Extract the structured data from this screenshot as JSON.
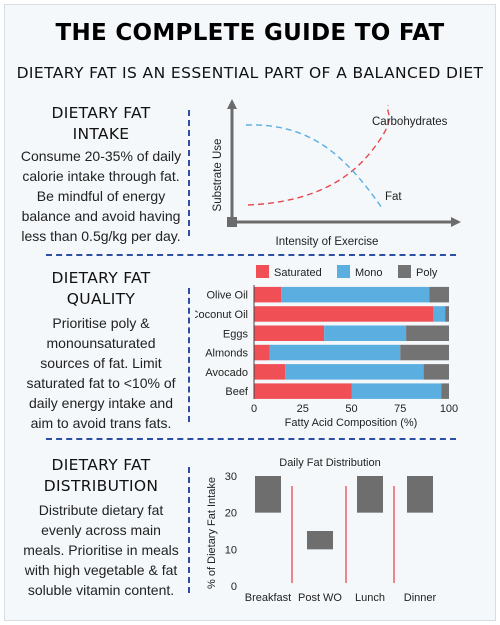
{
  "header": {
    "title": "THE COMPLETE GUIDE TO FAT",
    "subtitle": "DIETARY FAT IS AN ESSENTIAL PART OF A BALANCED DIET"
  },
  "sections": [
    {
      "heading_lines": [
        "DIETARY FAT",
        "INTAKE"
      ],
      "body_lines": [
        "Consume 20-35% of daily",
        "calorie intake through fat.",
        "Be mindful of energy",
        "balance and avoid having",
        "less than 0.5g/kg per day."
      ]
    },
    {
      "heading_lines": [
        "DIETARY FAT",
        "QUALITY"
      ],
      "body_lines": [
        "Prioritise poly &",
        "monounsaturated",
        "sources of fat. Limit",
        "saturated fat to <10% of",
        "daily energy intake and",
        "aim to avoid trans fats."
      ]
    },
    {
      "heading_lines": [
        "DIETARY FAT",
        "DISTRIBUTION"
      ],
      "body_lines": [
        "Distribute dietary fat",
        "evenly across main",
        "meals. Prioritise in meals",
        "with high vegetable & fat",
        "soluble vitamin content."
      ]
    }
  ],
  "chart_data": [
    {
      "type": "line",
      "title": "",
      "xlabel": "Intensity of Exercise",
      "ylabel": "Substrate Use",
      "series": [
        {
          "name": "Carbohydrates",
          "color": "#e8484d",
          "style": "dashed",
          "trend": "increasing"
        },
        {
          "name": "Fat",
          "color": "#5aaee0",
          "style": "dashed",
          "trend": "decreasing"
        }
      ],
      "axis_color": "#6b6b6b"
    },
    {
      "type": "bar",
      "orientation": "horizontal",
      "stacked": true,
      "title": "",
      "categories": [
        "Olive Oil",
        "Coconut Oil",
        "Eggs",
        "Almonds",
        "Avocado",
        "Beef"
      ],
      "series": [
        {
          "name": "Saturated",
          "color": "#ef4f55",
          "values": [
            14,
            92,
            36,
            8,
            16,
            50
          ]
        },
        {
          "name": "Mono",
          "color": "#5aaee0",
          "values": [
            76,
            6,
            42,
            67,
            71,
            46
          ]
        },
        {
          "name": "Poly",
          "color": "#737373",
          "values": [
            10,
            2,
            22,
            25,
            13,
            4
          ]
        }
      ],
      "xlabel": "Fatty Acid Composition (%)",
      "ylabel": "",
      "xlim": [
        0,
        100
      ],
      "xticks": [
        "0",
        "25",
        "50",
        "75",
        "100"
      ],
      "legend": "top"
    },
    {
      "type": "bar",
      "subtype": "floating",
      "title": "Daily Fat Distribution",
      "categories": [
        "Breakfast",
        "Post WO",
        "Lunch",
        "Dinner"
      ],
      "ranges": [
        [
          20,
          30
        ],
        [
          10,
          15
        ],
        [
          20,
          30
        ],
        [
          20,
          30
        ]
      ],
      "ylabel": "% of Dietary Fat Intake",
      "ylim": [
        0,
        30
      ],
      "yticks": [
        "0",
        "10",
        "20",
        "30"
      ],
      "bar_color": "#6e6e6e",
      "separator_color": "#e8484d"
    }
  ]
}
